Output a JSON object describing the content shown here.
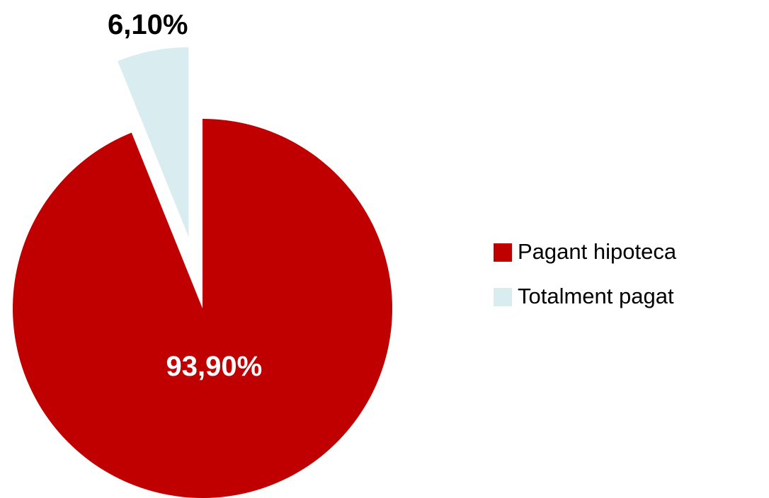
{
  "chart_data": {
    "type": "pie",
    "categories": [
      "Pagant hipoteca",
      "Totalment pagat"
    ],
    "values": [
      93.9,
      6.1
    ],
    "value_labels": [
      "93,90%",
      "6,10%"
    ],
    "colors": [
      "#c00000",
      "#d9ecf0"
    ],
    "legend": "right"
  }
}
